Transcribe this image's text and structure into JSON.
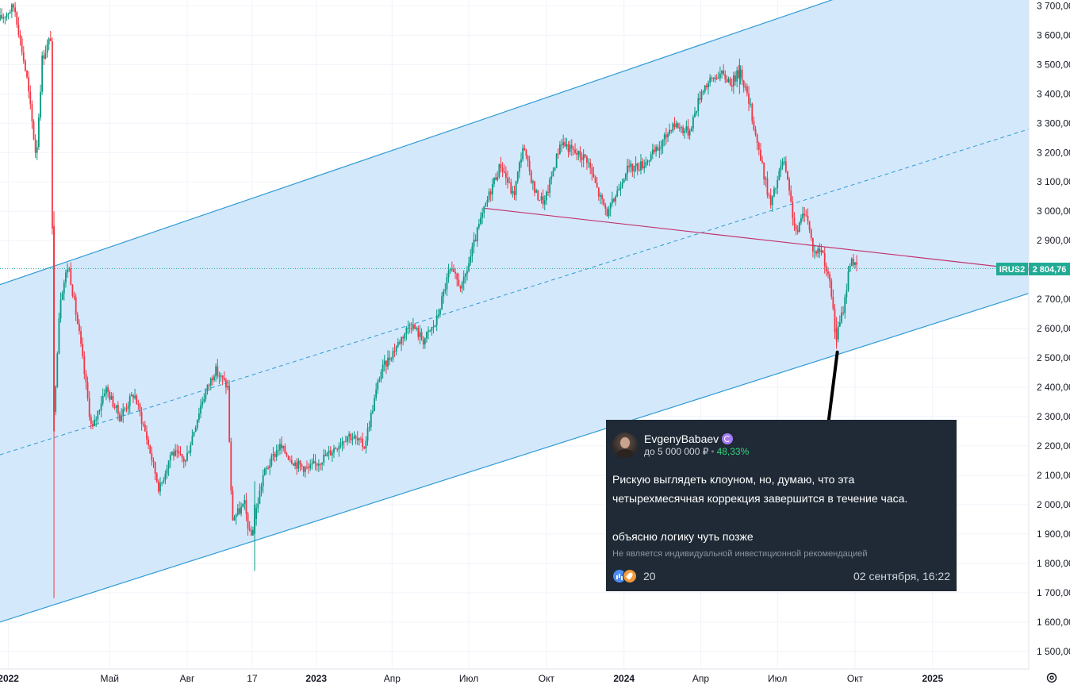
{
  "chart_data": {
    "type": "candlestick",
    "y_axis": {
      "ylim": [
        1440,
        3720
      ],
      "ticks": [
        1500,
        1600,
        1700,
        1800,
        1900,
        2000,
        2100,
        2200,
        2300,
        2400,
        2500,
        2600,
        2700,
        2800,
        2900,
        3000,
        3100,
        3200,
        3300,
        3400,
        3500,
        3600,
        3700
      ],
      "tick_labels": [
        "1 500,00",
        "1 600,00",
        "1 700,00",
        "1 800,00",
        "1 900,00",
        "2 000,00",
        "2 100,00",
        "2 200,00",
        "2 300,00",
        "2 400,00",
        "2 500,00",
        "2 600,00",
        "2 700,00",
        "2 800,00",
        "2 900,00",
        "3 000,00",
        "3 100,00",
        "3 200,00",
        "3 300,00",
        "3 400,00",
        "3 500,00",
        "3 600,00",
        "3 700,00"
      ]
    },
    "x_axis": {
      "range": [
        "2021-12-22",
        "2025-04-25"
      ],
      "ticks": [
        {
          "date": "2022-01-01",
          "label": "2022",
          "bold": true
        },
        {
          "date": "2022-05-01",
          "label": "Май",
          "bold": false
        },
        {
          "date": "2022-08-01",
          "label": "Авг",
          "bold": false
        },
        {
          "date": "2022-10-17",
          "label": "17",
          "bold": false
        },
        {
          "date": "2023-01-01",
          "label": "2023",
          "bold": true
        },
        {
          "date": "2023-04-01",
          "label": "Апр",
          "bold": false
        },
        {
          "date": "2023-07-01",
          "label": "Июл",
          "bold": false
        },
        {
          "date": "2023-10-01",
          "label": "Окт",
          "bold": false
        },
        {
          "date": "2024-01-01",
          "label": "2024",
          "bold": true
        },
        {
          "date": "2024-04-01",
          "label": "Апр",
          "bold": false
        },
        {
          "date": "2024-07-01",
          "label": "Июл",
          "bold": false
        },
        {
          "date": "2024-10-01",
          "label": "Окт",
          "bold": false
        },
        {
          "date": "2025-01-01",
          "label": "2025",
          "bold": true
        }
      ]
    },
    "price_path": [
      {
        "date": "2021-12-22",
        "price": 3650
      },
      {
        "date": "2022-01-10",
        "price": 3700
      },
      {
        "date": "2022-01-25",
        "price": 3450
      },
      {
        "date": "2022-02-05",
        "price": 3180
      },
      {
        "date": "2022-02-12",
        "price": 3520
      },
      {
        "date": "2022-02-23",
        "price": 3600
      },
      {
        "date": "2022-02-25",
        "price": 2250
      },
      {
        "date": "2022-03-05",
        "price": 2700
      },
      {
        "date": "2022-03-15",
        "price": 2820
      },
      {
        "date": "2022-03-28",
        "price": 2580
      },
      {
        "date": "2022-04-12",
        "price": 2250
      },
      {
        "date": "2022-04-28",
        "price": 2400
      },
      {
        "date": "2022-05-15",
        "price": 2300
      },
      {
        "date": "2022-06-01",
        "price": 2380
      },
      {
        "date": "2022-06-15",
        "price": 2240
      },
      {
        "date": "2022-07-01",
        "price": 2050
      },
      {
        "date": "2022-07-15",
        "price": 2180
      },
      {
        "date": "2022-08-01",
        "price": 2150
      },
      {
        "date": "2022-08-20",
        "price": 2350
      },
      {
        "date": "2022-09-05",
        "price": 2460
      },
      {
        "date": "2022-09-20",
        "price": 2400
      },
      {
        "date": "2022-09-25",
        "price": 1950
      },
      {
        "date": "2022-10-10",
        "price": 2000
      },
      {
        "date": "2022-10-17",
        "price": 1880
      },
      {
        "date": "2022-11-01",
        "price": 2100
      },
      {
        "date": "2022-11-20",
        "price": 2200
      },
      {
        "date": "2022-12-10",
        "price": 2140
      },
      {
        "date": "2022-12-25",
        "price": 2120
      },
      {
        "date": "2023-01-20",
        "price": 2180
      },
      {
        "date": "2023-02-10",
        "price": 2240
      },
      {
        "date": "2023-03-01",
        "price": 2200
      },
      {
        "date": "2023-03-20",
        "price": 2450
      },
      {
        "date": "2023-04-10",
        "price": 2550
      },
      {
        "date": "2023-04-25",
        "price": 2620
      },
      {
        "date": "2023-05-10",
        "price": 2560
      },
      {
        "date": "2023-05-25",
        "price": 2620
      },
      {
        "date": "2023-06-10",
        "price": 2800
      },
      {
        "date": "2023-06-25",
        "price": 2740
      },
      {
        "date": "2023-07-15",
        "price": 2950
      },
      {
        "date": "2023-08-01",
        "price": 3100
      },
      {
        "date": "2023-08-10",
        "price": 3160
      },
      {
        "date": "2023-08-25",
        "price": 3050
      },
      {
        "date": "2023-09-05",
        "price": 3220
      },
      {
        "date": "2023-09-20",
        "price": 3060
      },
      {
        "date": "2023-10-01",
        "price": 3030
      },
      {
        "date": "2023-10-20",
        "price": 3240
      },
      {
        "date": "2023-11-05",
        "price": 3200
      },
      {
        "date": "2023-11-20",
        "price": 3180
      },
      {
        "date": "2023-12-05",
        "price": 3050
      },
      {
        "date": "2023-12-15",
        "price": 2990
      },
      {
        "date": "2024-01-05",
        "price": 3140
      },
      {
        "date": "2024-01-25",
        "price": 3160
      },
      {
        "date": "2024-02-15",
        "price": 3220
      },
      {
        "date": "2024-03-01",
        "price": 3300
      },
      {
        "date": "2024-03-20",
        "price": 3270
      },
      {
        "date": "2024-04-05",
        "price": 3420
      },
      {
        "date": "2024-04-25",
        "price": 3470
      },
      {
        "date": "2024-05-10",
        "price": 3440
      },
      {
        "date": "2024-05-20",
        "price": 3480
      },
      {
        "date": "2024-06-01",
        "price": 3350
      },
      {
        "date": "2024-06-15",
        "price": 3150
      },
      {
        "date": "2024-06-25",
        "price": 3020
      },
      {
        "date": "2024-07-10",
        "price": 3180
      },
      {
        "date": "2024-07-25",
        "price": 2920
      },
      {
        "date": "2024-08-05",
        "price": 3010
      },
      {
        "date": "2024-08-15",
        "price": 2860
      },
      {
        "date": "2024-08-25",
        "price": 2870
      },
      {
        "date": "2024-09-05",
        "price": 2720
      },
      {
        "date": "2024-09-10",
        "price": 2560
      },
      {
        "date": "2024-09-20",
        "price": 2680
      },
      {
        "date": "2024-09-28",
        "price": 2850
      },
      {
        "date": "2024-10-04",
        "price": 2805
      }
    ],
    "candles": [
      {
        "date": "2022-02-24",
        "open": 2950,
        "high": 3000,
        "low": 1681,
        "close": 2250
      },
      {
        "date": "2022-10-20",
        "open": 1900,
        "high": 2080,
        "low": 1774,
        "close": 2000
      },
      {
        "date": "2024-05-17",
        "open": 3450,
        "high": 3520,
        "low": 3400,
        "close": 3480
      },
      {
        "date": "2024-09-09",
        "open": 2600,
        "high": 2640,
        "low": 2531,
        "close": 2560
      }
    ],
    "channel": {
      "upper": [
        {
          "date": "2021-12-22",
          "price": 2750
        },
        {
          "date": "2025-04-25",
          "price": 3950
        }
      ],
      "mid": [
        {
          "date": "2021-12-22",
          "price": 2170
        },
        {
          "date": "2025-04-25",
          "price": 3280
        }
      ],
      "lower": [
        {
          "date": "2021-12-22",
          "price": 1600
        },
        {
          "date": "2025-04-25",
          "price": 2720
        }
      ]
    },
    "trendline": [
      {
        "date": "2023-07-20",
        "price": 3010
      },
      {
        "date": "2025-04-25",
        "price": 2800
      }
    ],
    "current_price_line": 2804.76,
    "price_badge": {
      "ticker": "IRUS2",
      "price": "2 804,76"
    },
    "annotation_arrow": [
      {
        "date": "2024-09-10",
        "price": 2520
      },
      {
        "date": "2024-08-30",
        "price": 2270
      }
    ],
    "colors": {
      "channel_fill": "#cfe5fb",
      "channel_line": "#2e9bd6",
      "trendline": "#c2346e",
      "up": "#089981",
      "down": "#f23645",
      "grid": "#f0f3fa",
      "badge": "#22ab94",
      "arrow": "#000000"
    }
  },
  "post": {
    "author": "EvgenyBabaev",
    "goal": "до 5 000 000 ₽",
    "separator": "•",
    "gain": "48,33%",
    "body_line1": "Рискую выглядеть клоуном, но, думаю, что эта",
    "body_line2": "четырехмесячная коррекция завершится в течение часа.",
    "body_line3": "объясню логику чуть позже",
    "disclaimer": "Не является индивидуальной инвестиционной рекомендацией",
    "reactions_count": "20",
    "date": "02 сентября, 16:22",
    "icons": [
      "avatar",
      "premium-badge-icon",
      "chart-reaction-icon",
      "rocket-reaction-icon"
    ]
  },
  "toolbar": {
    "settings_icon": "gear-icon"
  }
}
